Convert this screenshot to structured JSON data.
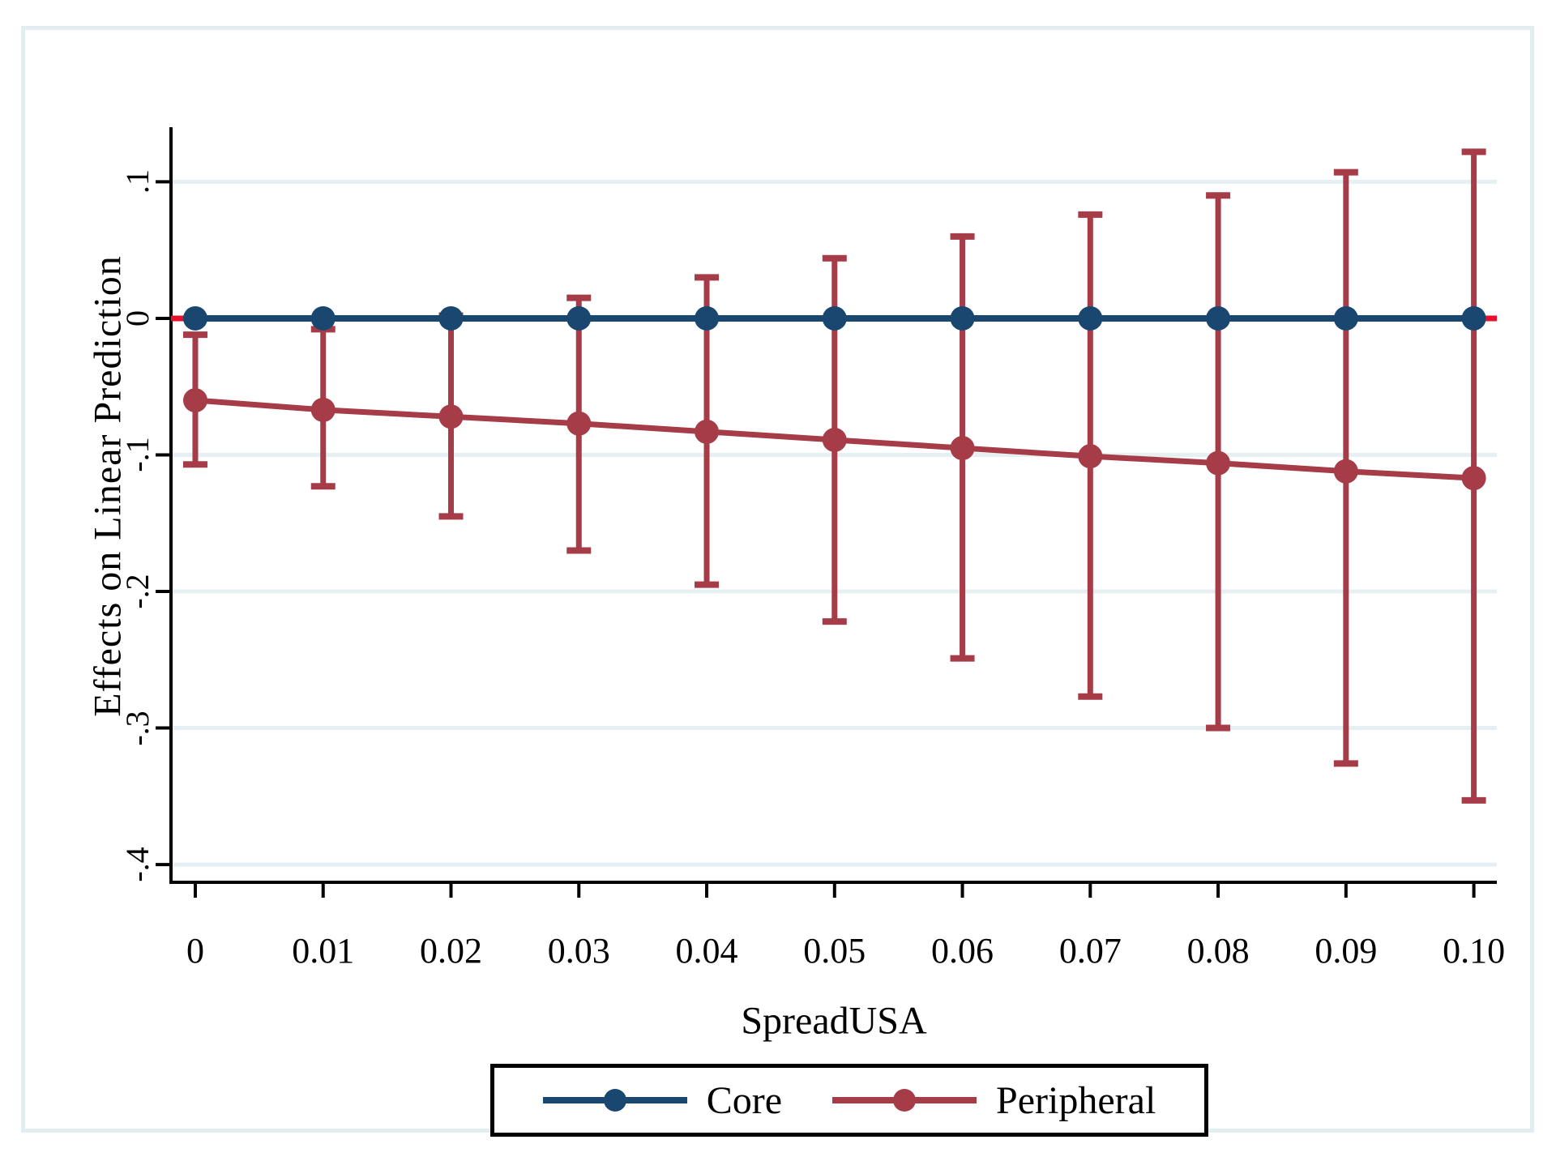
{
  "figure": {
    "kind": "stata-marginsplot",
    "background": "#ffffff"
  },
  "colors": {
    "core": "#1a476f",
    "peripheral": "#a63c48",
    "reference_line": "#e8112d",
    "grid": "#e6f0f2",
    "frame": "#e2edf0",
    "axis": "#000000",
    "legend_border": "#000000"
  },
  "chart_data": {
    "type": "line",
    "title": "",
    "xlabel": "SpreadUSA",
    "ylabel": "Effects on Linear Prediction",
    "x": [
      0,
      0.01,
      0.02,
      0.03,
      0.04,
      0.05,
      0.06,
      0.07,
      0.08,
      0.09,
      0.1
    ],
    "x_tick_labels": [
      "0",
      "0.01",
      "0.02",
      "0.03",
      "0.04",
      "0.05",
      "0.06",
      "0.07",
      "0.08",
      "0.09",
      "0.10"
    ],
    "y_ticks": [
      {
        "label": ".1",
        "value": 0.1
      },
      {
        "label": "0",
        "value": 0
      },
      {
        "label": "-.1",
        "value": -0.1
      },
      {
        "label": "-.2",
        "value": -0.2
      },
      {
        "label": "-.3",
        "value": -0.3
      },
      {
        "label": "-.4",
        "value": -0.4
      }
    ],
    "xlim": [
      -0.0019,
      0.1018
    ],
    "ylim": [
      -0.413,
      0.14
    ],
    "grid": true,
    "legend_position": "bottom-center",
    "reference_line": {
      "y": 0,
      "color": "#e8112d"
    },
    "series": [
      {
        "name": "Core",
        "color": "#1a476f",
        "marker": "circle",
        "values": [
          0,
          0,
          0,
          0,
          0,
          0,
          0,
          0,
          0,
          0,
          0
        ]
      },
      {
        "name": "Peripheral",
        "color": "#a63c48",
        "marker": "circle",
        "values": [
          -0.06,
          -0.067,
          -0.072,
          -0.077,
          -0.083,
          -0.089,
          -0.095,
          -0.101,
          -0.106,
          -0.112,
          -0.117
        ],
        "ci_upper": [
          -0.012,
          -0.008,
          0.002,
          0.015,
          0.03,
          0.044,
          0.06,
          0.076,
          0.09,
          0.107,
          0.122
        ],
        "ci_lower": [
          -0.107,
          -0.123,
          -0.145,
          -0.17,
          -0.195,
          -0.222,
          -0.249,
          -0.277,
          -0.3,
          -0.326,
          -0.353
        ]
      }
    ]
  }
}
